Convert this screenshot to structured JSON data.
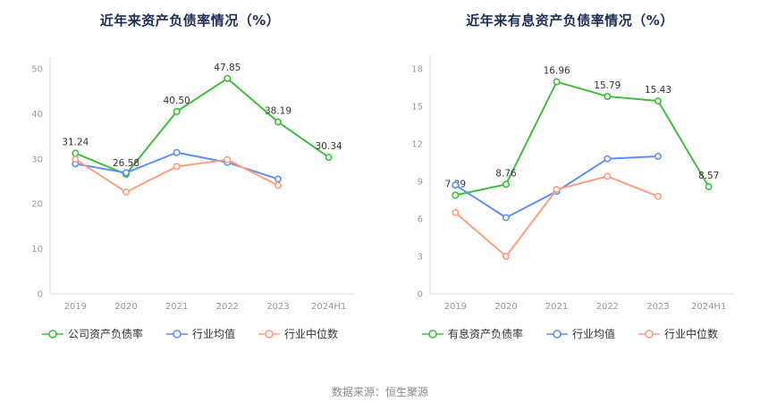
{
  "source_note": "数据来源：恒生聚源",
  "colors": {
    "series_green": "#3cbe3c",
    "series_blue": "#5b8ff9",
    "series_orange": "#ff9d7e",
    "title_color": "#1c2e54",
    "axis_color": "#dddddd",
    "tick_color": "#999999",
    "label_color": "#333333"
  },
  "chart_data": [
    {
      "type": "line",
      "title": "近年来资产负债率情况（%）",
      "categories": [
        "2019",
        "2020",
        "2021",
        "2022",
        "2023",
        "2024H1"
      ],
      "ylim": [
        0,
        50
      ],
      "yticks": [
        0,
        10,
        20,
        30,
        40,
        50
      ],
      "grid": false,
      "legend_position": "bottom",
      "series": [
        {
          "name": "公司资产负债率",
          "color": "#3cbe3c",
          "values": [
            31.24,
            26.58,
            40.5,
            47.85,
            38.19,
            30.34
          ],
          "labels": [
            "31.24",
            "26.58",
            "40.50",
            "47.85",
            "38.19",
            "30.34"
          ]
        },
        {
          "name": "行业均值",
          "color": "#5b8ff9",
          "values": [
            28.9,
            26.9,
            31.4,
            29.2,
            25.5,
            null
          ]
        },
        {
          "name": "行业中位数",
          "color": "#ff9d7e",
          "values": [
            29.9,
            22.6,
            28.3,
            29.8,
            24.1,
            null
          ]
        }
      ]
    },
    {
      "type": "line",
      "title": "近年来有息资产负债率情况（%）",
      "categories": [
        "2019",
        "2020",
        "2021",
        "2022",
        "2023",
        "2024H1"
      ],
      "ylim": [
        0,
        18
      ],
      "yticks": [
        0,
        3,
        6,
        9,
        12,
        15,
        18
      ],
      "grid": false,
      "legend_position": "bottom",
      "series": [
        {
          "name": "有息资产负债率",
          "color": "#3cbe3c",
          "values": [
            7.89,
            8.76,
            16.96,
            15.79,
            15.43,
            8.57
          ],
          "labels": [
            "7.89",
            "8.76",
            "16.96",
            "15.79",
            "15.43",
            "8.57"
          ]
        },
        {
          "name": "行业均值",
          "color": "#5b8ff9",
          "values": [
            8.7,
            6.1,
            8.2,
            10.8,
            11.0,
            null
          ]
        },
        {
          "name": "行业中位数",
          "color": "#ff9d7e",
          "values": [
            6.5,
            3.0,
            8.35,
            9.4,
            7.8,
            null
          ]
        }
      ]
    }
  ]
}
